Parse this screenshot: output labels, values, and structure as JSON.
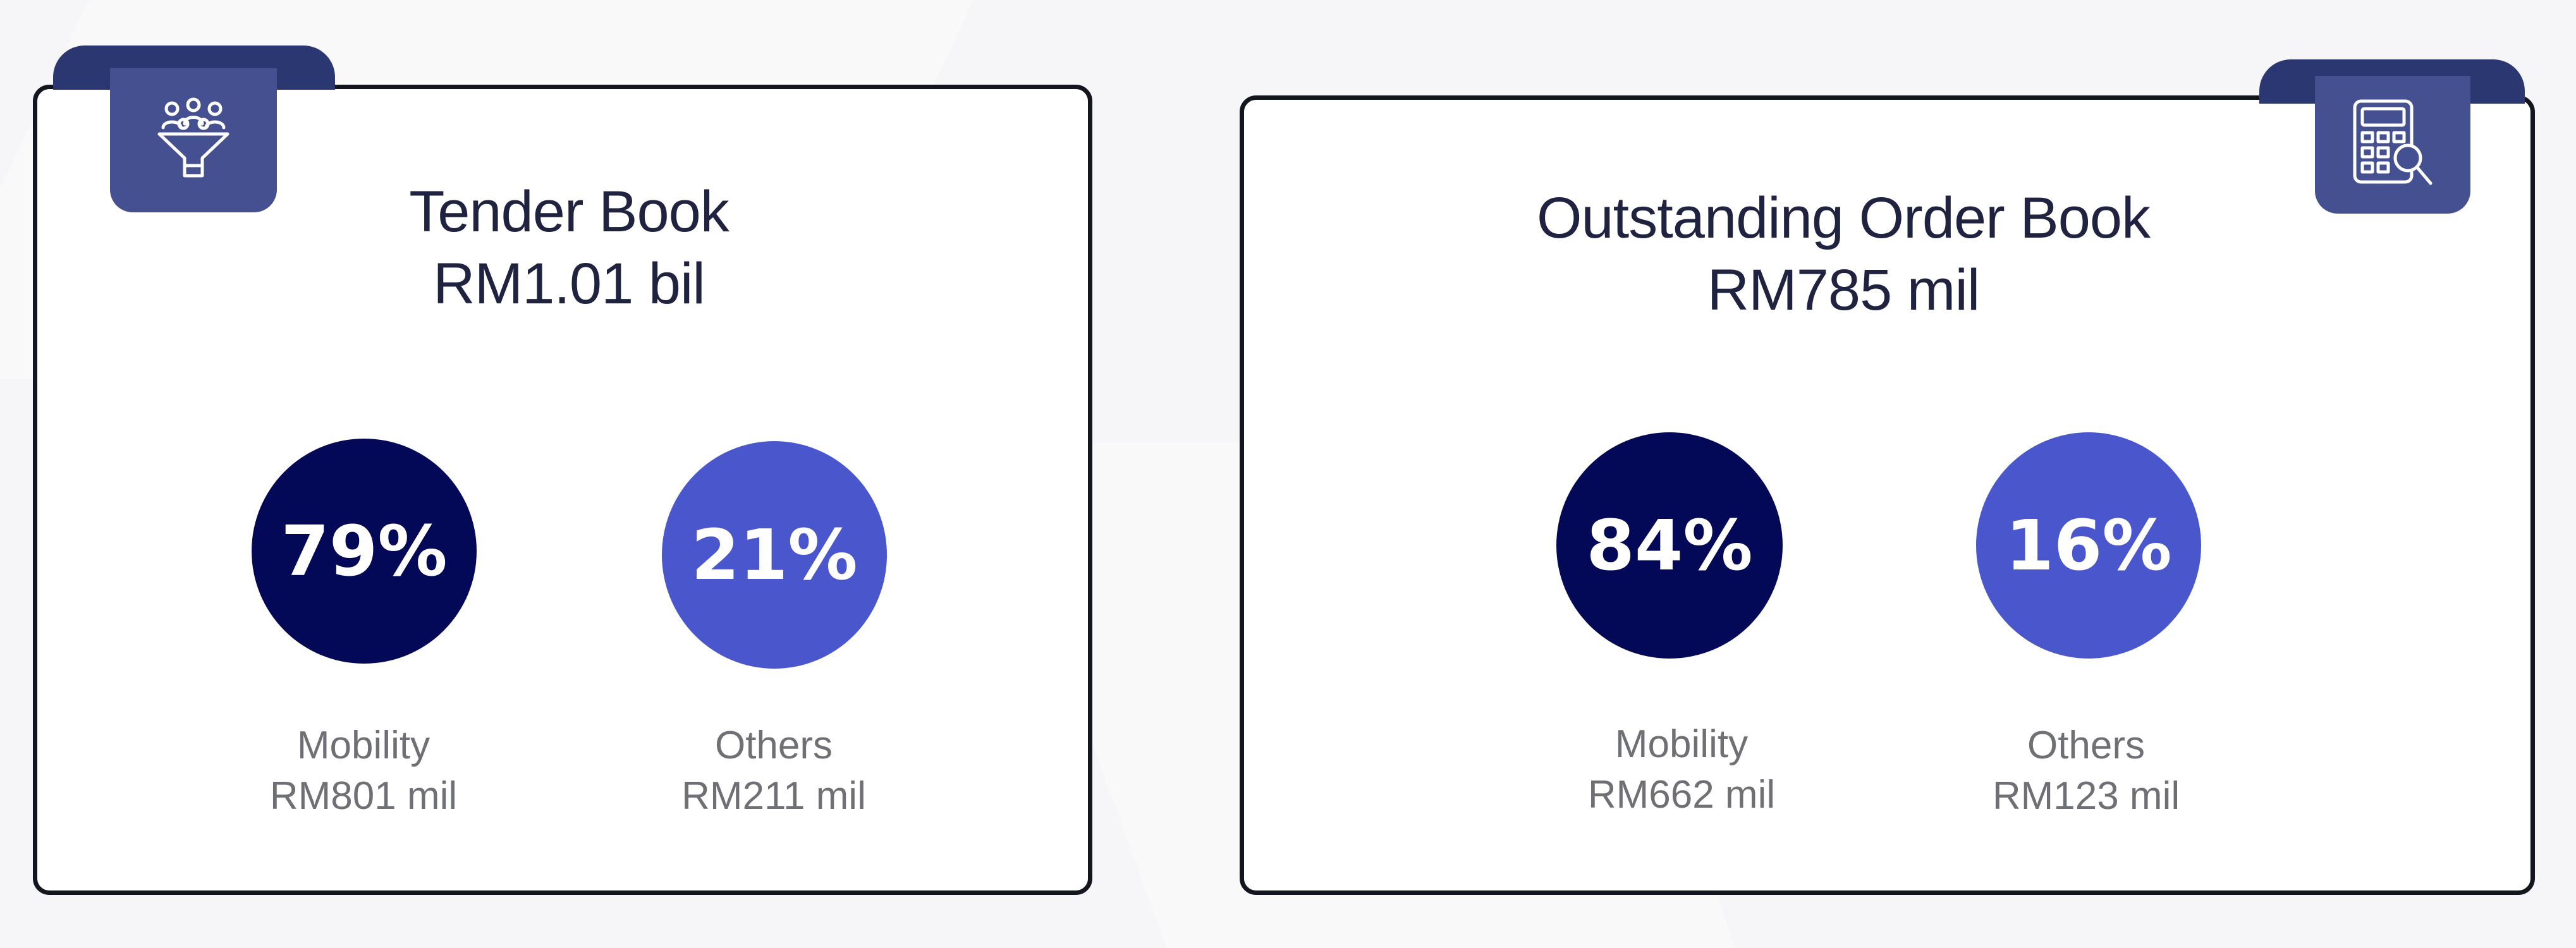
{
  "colors": {
    "dark_circle": "#030857",
    "light_circle": "#4a56cc",
    "tab": "#44508f",
    "border": "#14161f"
  },
  "tender_book": {
    "icon": "people-funnel-icon",
    "title": "Tender Book",
    "amount": "RM1.01 bil",
    "segments": [
      {
        "percent": "79%",
        "label": "Mobility",
        "value": "RM801 mil"
      },
      {
        "percent": "21%",
        "label": "Others",
        "value": "RM211 mil"
      }
    ]
  },
  "order_book": {
    "icon": "calculator-search-icon",
    "title": "Outstanding Order Book",
    "amount": "RM785 mil",
    "segments": [
      {
        "percent": "84%",
        "label": "Mobility",
        "value": "RM662 mil"
      },
      {
        "percent": "16%",
        "label": "Others",
        "value": "RM123 mil"
      }
    ]
  }
}
